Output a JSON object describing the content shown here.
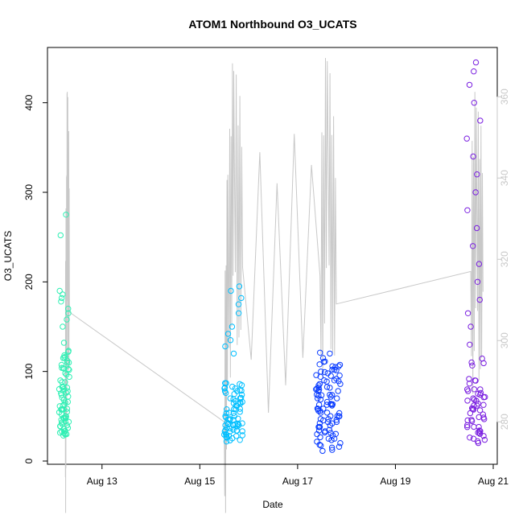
{
  "chart_data": {
    "type": "scatter",
    "title": "ATOM1 Northbound O3_UCATS",
    "xlabel": "Date",
    "ylabel": "O3_UCATS",
    "x_unit": "date",
    "x_range": [
      "2016-08-12T00:00",
      "2016-08-21T00:00"
    ],
    "y_range": [
      0,
      450
    ],
    "y2_range": [
      265,
      365
    ],
    "x_ticks": [
      "Aug 13",
      "Aug 15",
      "Aug 17",
      "Aug 19",
      "Aug 21"
    ],
    "x_tick_dates": [
      "2016-08-13",
      "2016-08-15",
      "2016-08-17",
      "2016-08-19",
      "2016-08-21"
    ],
    "y_ticks": [
      0,
      100,
      200,
      300,
      400
    ],
    "y2_ticks": [
      280,
      300,
      320,
      340,
      360
    ],
    "grid": false,
    "legend": "none",
    "colors": {
      "flight1": "#2ff0b4",
      "flight2": "#00bfff",
      "flight3": "#0a3cff",
      "flight4": "#7a1fe0",
      "secondary_line": "#c8c8c8",
      "right_axis": "#c8c8c8"
    },
    "series": [
      {
        "color_key": "flight1",
        "date": "2016-08-12",
        "t_range": [
          "2016-08-12T03:00",
          "2016-08-12T08:00"
        ],
        "y_samples": [
          30,
          33,
          36,
          40,
          44,
          48,
          52,
          58,
          62,
          66,
          72,
          78,
          82,
          90,
          98,
          104,
          112,
          118,
          122,
          132,
          150,
          158,
          165,
          170,
          178,
          182,
          186,
          190,
          252,
          275
        ]
      },
      {
        "color_key": "flight2",
        "date": "2016-08-15",
        "t_range": [
          "2016-08-15T12:00",
          "2016-08-15T21:00"
        ],
        "y_samples": [
          23,
          27,
          30,
          33,
          35,
          37,
          40,
          43,
          46,
          50,
          54,
          58,
          62,
          66,
          70,
          74,
          78,
          82,
          86,
          120,
          128,
          135,
          142,
          150,
          165,
          175,
          182,
          190,
          195
        ]
      },
      {
        "color_key": "flight3",
        "date": "2016-08-17",
        "t_range": [
          "2016-08-17T09:00",
          "2016-08-17T21:00"
        ],
        "y_samples": [
          15,
          20,
          25,
          30,
          34,
          38,
          42,
          46,
          50,
          54,
          58,
          62,
          66,
          70,
          74,
          78,
          82,
          86,
          90,
          94,
          98,
          102,
          108,
          115
        ]
      },
      {
        "color_key": "flight4",
        "date": "2016-08-20",
        "t_range": [
          "2016-08-20T11:00",
          "2016-08-20T20:00"
        ],
        "y_samples": [
          22,
          28,
          34,
          40,
          46,
          52,
          58,
          64,
          70,
          76,
          80,
          90,
          110,
          130,
          150,
          165,
          180,
          200,
          220,
          240,
          260,
          280,
          300,
          320,
          340,
          360,
          380,
          400,
          420,
          435,
          445
        ]
      }
    ],
    "secondary_series": {
      "type": "line",
      "axis": "right",
      "points": [
        [
          "2016-08-12T06:00",
          287
        ],
        [
          "2016-08-12T06:30",
          304
        ],
        [
          "2016-08-12T07:00",
          338
        ],
        [
          "2016-08-12T08:00",
          307
        ],
        [
          "2016-08-15T12:00",
          280
        ],
        [
          "2016-08-15T14:00",
          318
        ],
        [
          "2016-08-15T17:00",
          342
        ],
        [
          "2016-08-15T21:00",
          318
        ],
        [
          "2016-08-17T11:00",
          316
        ],
        [
          "2016-08-17T15:00",
          345
        ],
        [
          "2016-08-17T19:00",
          309
        ],
        [
          "2016-08-20T13:00",
          317
        ],
        [
          "2016-08-20T16:00",
          332
        ],
        [
          "2016-08-20T19:00",
          312
        ]
      ]
    }
  }
}
